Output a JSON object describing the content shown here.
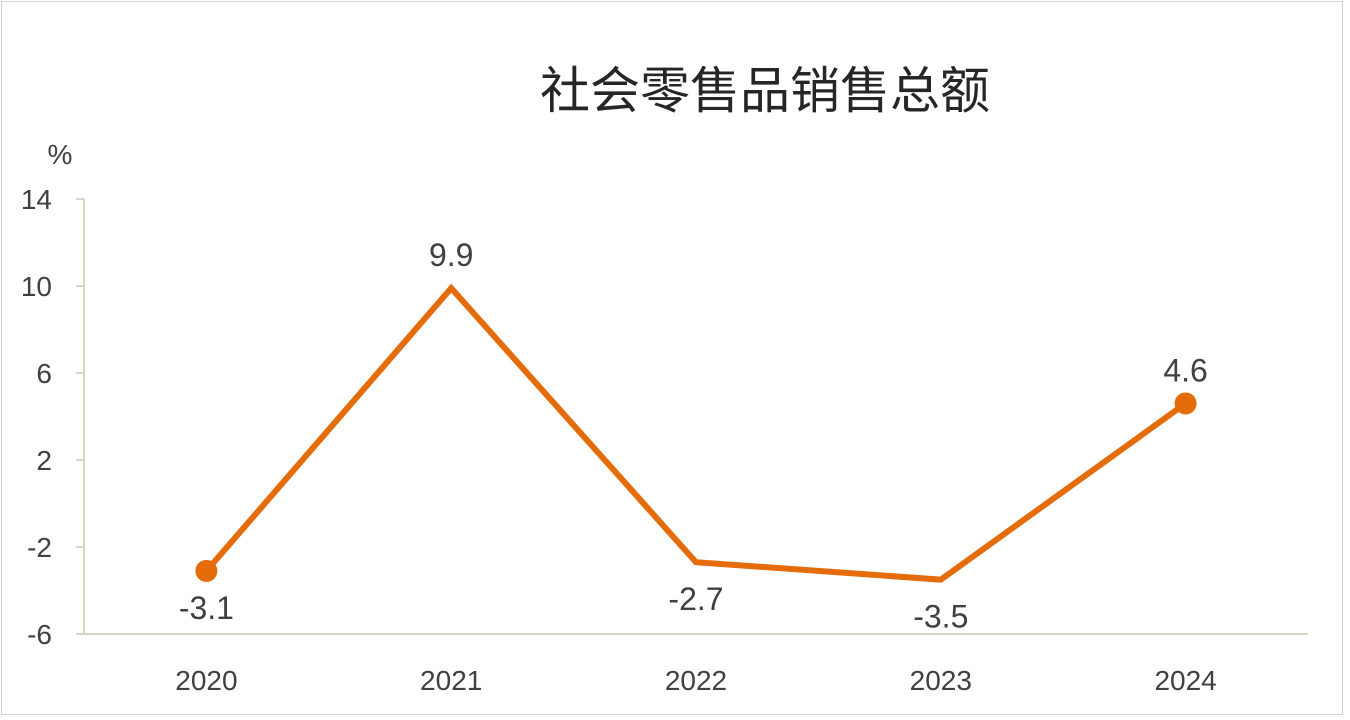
{
  "chart_data": {
    "type": "line",
    "title": "社会零售品销售总额",
    "ylabel": "%",
    "xlabel": "",
    "categories": [
      "2020",
      "2021",
      "2022",
      "2023",
      "2024"
    ],
    "series": [
      {
        "values": [
          -3.1,
          9.9,
          -2.7,
          -3.5,
          4.6
        ],
        "color": "#E46C0A"
      }
    ],
    "data_labels": [
      "-3.1",
      "9.9",
      "-2.7",
      "-3.5",
      "4.6"
    ],
    "ylim": [
      -6,
      14
    ],
    "yticks": [
      "14",
      "10",
      "6",
      "2",
      "-2",
      "-6"
    ],
    "ytick_values": [
      14,
      10,
      6,
      2,
      -2,
      -6
    ],
    "grid": false,
    "legend": "none",
    "markers_on": [
      "2020",
      "2024"
    ]
  }
}
